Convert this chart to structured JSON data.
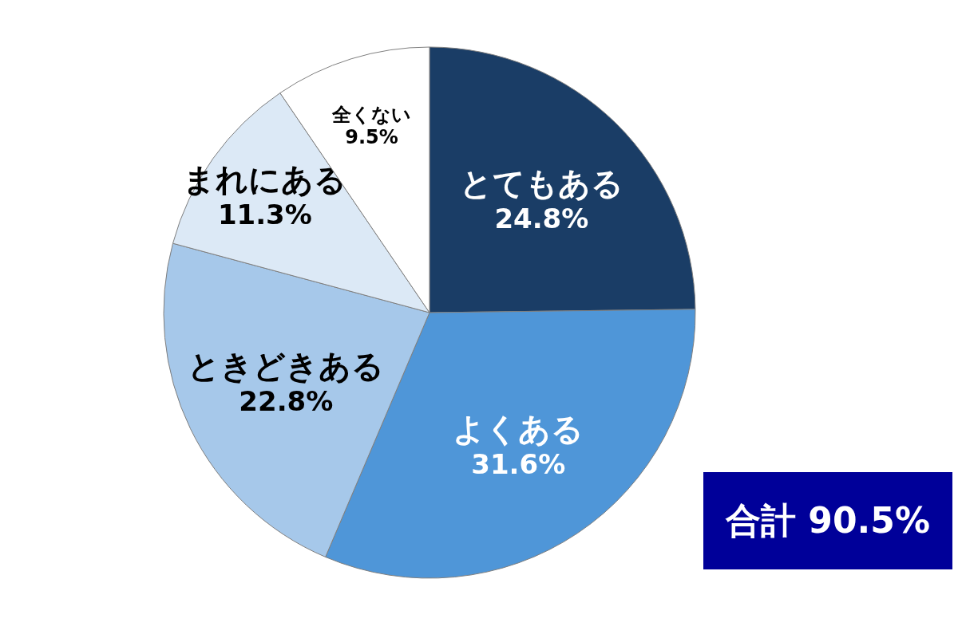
{
  "chart_data": {
    "type": "pie",
    "categories": [
      "とてもある",
      "よくある",
      "ときどきある",
      "まれにある",
      "全くない"
    ],
    "values": [
      24.8,
      31.6,
      22.8,
      11.3,
      9.5
    ],
    "colors": [
      "#1a3d66",
      "#4f96d8",
      "#a6c8ea",
      "#dce9f6",
      "#ffffff"
    ],
    "value_labels": [
      "24.8%",
      "31.6%",
      "22.8%",
      "11.3%",
      "9.5%"
    ],
    "annotations": [
      "合計 90.5%"
    ],
    "legend": false
  }
}
